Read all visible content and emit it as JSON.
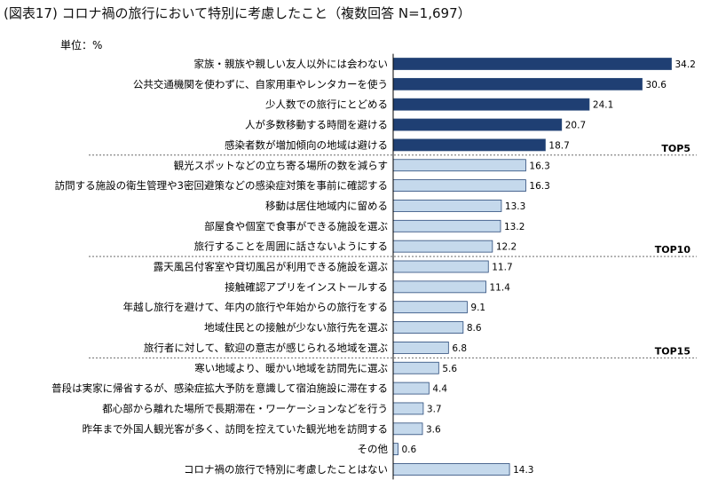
{
  "chart_data": {
    "type": "bar",
    "orientation": "horizontal",
    "title": "(図表17) コロナ禍の旅行において特別に考慮したこと（複数回答 N=1,697）",
    "unit": "単位：%",
    "categories": [
      "家族・親族や親しい友人以外には会わない",
      "公共交通機関を使わずに、自家用車やレンタカーを使う",
      "少人数での旅行にとどめる",
      "人が多数移動する時間を避ける",
      "感染者数が増加傾向の地域は避ける",
      "観光スポットなどの立ち寄る場所の数を減らす",
      "訪問する施設の衛生管理や3密回避策などの感染症対策を事前に確認する",
      "移動は居住地域内に留める",
      "部屋食や個室で食事ができる施設を選ぶ",
      "旅行することを周囲に話さないようにする",
      "露天風呂付客室や貸切風呂が利用できる施設を選ぶ",
      "接触確認アプリをインストールする",
      "年越し旅行を避けて、年内の旅行や年始からの旅行をする",
      "地域住民との接触が少ない旅行先を選ぶ",
      "旅行者に対して、歓迎の意志が感じられる地域を選ぶ",
      "寒い地域より、暖かい地域を訪問先に選ぶ",
      "普段は実家に帰省するが、感染症拡大予防を意識して宿泊施設に滞在する",
      "都心部から離れた場所で長期滞在・ワーケーションなどを行う",
      "昨年まで外国人観光客が多く、訪問を控えていた観光地を訪問する",
      "その他",
      "コロナ禍の旅行で特別に考慮したことはない"
    ],
    "values": [
      34.2,
      30.6,
      24.1,
      20.7,
      18.7,
      16.3,
      16.3,
      13.3,
      13.2,
      12.2,
      11.7,
      11.4,
      9.1,
      8.6,
      6.8,
      5.6,
      4.4,
      3.7,
      3.6,
      0.6,
      14.3
    ],
    "value_labels": [
      "34.2",
      "30.6",
      "24.1",
      "20.7",
      "18.7",
      "16.3",
      "16.3",
      "13.3",
      "13.2",
      "12.2",
      "11.7",
      "11.4",
      "9.1",
      "8.6",
      "6.8",
      "5.6",
      "4.4",
      "3.7",
      "3.6",
      "0.6",
      "14.3"
    ],
    "xlim": [
      0,
      36
    ],
    "tiers": [
      {
        "label": "TOP5",
        "after_index": 4
      },
      {
        "label": "TOP10",
        "after_index": 9
      },
      {
        "label": "TOP15",
        "after_index": 14
      }
    ],
    "colors": {
      "top5_bar": "#1f3f73",
      "other_bar": "#c5d9ec",
      "bar_border": "#2a4a7a",
      "axis": "#000000",
      "separator": "#555555"
    }
  }
}
